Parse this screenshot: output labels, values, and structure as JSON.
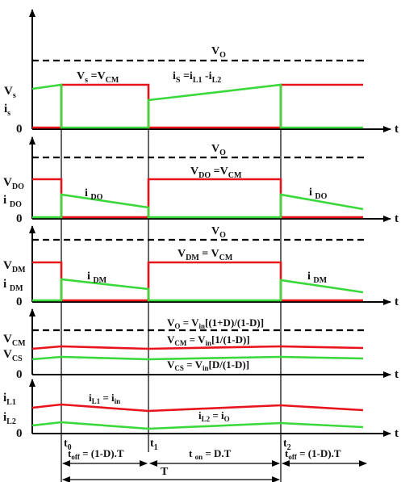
{
  "panels": [
    {
      "id": "switch",
      "y_labels": [
        {
          "main": "V",
          "sub": "s"
        },
        {
          "main": "i",
          "sub": "s"
        }
      ],
      "zero": "0",
      "axis": "t",
      "dashed_label": {
        "main": "V",
        "sub": "O"
      },
      "annotations": [
        {
          "parts": [
            [
              "V",
              ""
            ],
            [
              "s",
              "sub"
            ],
            [
              " =V",
              ""
            ],
            [
              "CM",
              "sub"
            ]
          ]
        },
        {
          "parts": [
            [
              "i",
              ""
            ],
            [
              "S",
              "sub"
            ],
            [
              " =i",
              ""
            ],
            [
              "L1",
              "sub"
            ],
            [
              " -i",
              ""
            ],
            [
              "L2",
              "sub"
            ]
          ]
        }
      ]
    },
    {
      "id": "diode_o",
      "y_labels": [
        {
          "main": "V",
          "sub": "DO"
        },
        {
          "main": "i ",
          "sub": "DO"
        }
      ],
      "zero": "0",
      "axis": "t",
      "dashed_label": {
        "main": "V",
        "sub": "O"
      },
      "annotations": [
        {
          "parts": [
            [
              "V",
              ""
            ],
            [
              "DO",
              "sub"
            ],
            [
              " =V",
              ""
            ],
            [
              "CM",
              "sub"
            ]
          ]
        },
        {
          "parts": [
            [
              "i ",
              ""
            ],
            [
              "DO",
              "sub"
            ]
          ]
        },
        {
          "parts": [
            [
              "i ",
              ""
            ],
            [
              "DO",
              "sub"
            ]
          ]
        }
      ]
    },
    {
      "id": "diode_m",
      "y_labels": [
        {
          "main": "V",
          "sub": "DM"
        },
        {
          "main": "i ",
          "sub": "DM"
        }
      ],
      "zero": "0",
      "axis": "t",
      "dashed_label": {
        "main": "V",
        "sub": "O"
      },
      "annotations": [
        {
          "parts": [
            [
              "V",
              ""
            ],
            [
              "DM",
              "sub"
            ],
            [
              " = V",
              ""
            ],
            [
              "CM",
              "sub"
            ]
          ]
        },
        {
          "parts": [
            [
              "i ",
              ""
            ],
            [
              "DM",
              "sub"
            ]
          ]
        },
        {
          "parts": [
            [
              "i ",
              ""
            ],
            [
              "DM",
              "sub"
            ]
          ]
        }
      ]
    },
    {
      "id": "caps",
      "y_labels": [
        {
          "main": "V",
          "sub": "CM"
        },
        {
          "main": "V",
          "sub": "CS"
        }
      ],
      "zero": "0",
      "axis": "t",
      "annotations": [
        {
          "parts": [
            [
              "V",
              ""
            ],
            [
              "O",
              "sub"
            ],
            [
              " = V",
              ""
            ],
            [
              "in",
              "sub"
            ],
            [
              "[(1+D)/(1-D)]",
              ""
            ]
          ]
        },
        {
          "parts": [
            [
              "V",
              ""
            ],
            [
              "CM",
              "sub"
            ],
            [
              " = V",
              ""
            ],
            [
              "in",
              "sub"
            ],
            [
              "[1/(1-D)]",
              ""
            ]
          ]
        },
        {
          "parts": [
            [
              "V",
              ""
            ],
            [
              "CS",
              "sub"
            ],
            [
              " = V",
              ""
            ],
            [
              "in",
              "sub"
            ],
            [
              "[D/(1-D)]",
              ""
            ]
          ]
        }
      ]
    },
    {
      "id": "inductors",
      "y_labels": [
        {
          "main": "i",
          "sub": "L1"
        },
        {
          "main": "i",
          "sub": "L2"
        }
      ],
      "zero": "0",
      "axis": "t",
      "annotations": [
        {
          "parts": [
            [
              "i",
              ""
            ],
            [
              "L1",
              "sub"
            ],
            [
              " = i",
              ""
            ],
            [
              "in",
              "sub"
            ]
          ]
        },
        {
          "parts": [
            [
              "i",
              ""
            ],
            [
              "L2",
              "sub"
            ],
            [
              " = i",
              ""
            ],
            [
              "O",
              "sub"
            ]
          ]
        }
      ]
    }
  ],
  "time_marks": [
    {
      "main": "t",
      "sub": "0"
    },
    {
      "main": "t",
      "sub": "1"
    },
    {
      "main": "t",
      "sub": "2"
    }
  ],
  "intervals": [
    {
      "parts": [
        [
          "t",
          ""
        ],
        [
          "off",
          "sub"
        ],
        [
          " = (1-D).T",
          ""
        ]
      ]
    },
    {
      "parts": [
        [
          "t ",
          ""
        ],
        [
          "on",
          "sub"
        ],
        [
          " = D.T",
          ""
        ]
      ]
    },
    {
      "parts": [
        [
          "t",
          ""
        ],
        [
          "off",
          "sub"
        ],
        [
          " = (1-D).T",
          ""
        ]
      ]
    }
  ],
  "period": "T",
  "colors": {
    "voltage": "#e8141c",
    "current": "#3ad83a",
    "axis": "#000000"
  }
}
